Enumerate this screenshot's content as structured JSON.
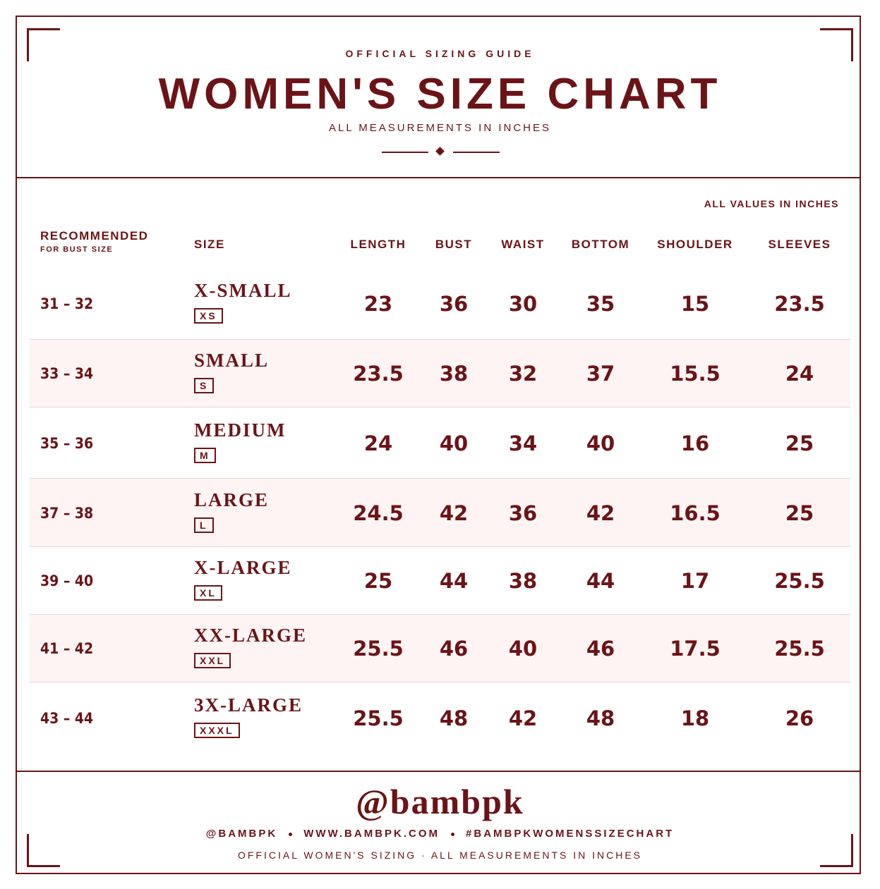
{
  "header": {
    "eyebrow": "OFFICIAL SIZING GUIDE",
    "title": "WOMEN'S SIZE CHART",
    "subtitle": "ALL MEASUREMENTS IN INCHES"
  },
  "table": {
    "note": "ALL VALUES IN INCHES",
    "columns": {
      "recommended": "RECOMMENDED",
      "recommended_sub": "FOR BUST SIZE",
      "size": "SIZE",
      "measures": [
        "LENGTH",
        "BUST",
        "WAIST",
        "BOTTOM",
        "SHOULDER",
        "SLEEVES"
      ]
    },
    "rows": [
      {
        "bust": "31 – 32",
        "size": "X-SMALL",
        "code": "XS",
        "values": [
          23,
          36,
          30,
          35,
          15,
          23.5
        ]
      },
      {
        "bust": "33 – 34",
        "size": "SMALL",
        "code": "S",
        "values": [
          23.5,
          38,
          32,
          37,
          15.5,
          24
        ]
      },
      {
        "bust": "35 – 36",
        "size": "MEDIUM",
        "code": "M",
        "values": [
          24,
          40,
          34,
          40,
          16,
          25
        ]
      },
      {
        "bust": "37 – 38",
        "size": "LARGE",
        "code": "L",
        "values": [
          24.5,
          42,
          36,
          42,
          16.5,
          25
        ]
      },
      {
        "bust": "39 – 40",
        "size": "X-LARGE",
        "code": "XL",
        "values": [
          25,
          44,
          38,
          44,
          17,
          25.5
        ]
      },
      {
        "bust": "41 – 42",
        "size": "XX-LARGE",
        "code": "XXL",
        "values": [
          25.5,
          46,
          40,
          46,
          17.5,
          25.5
        ]
      },
      {
        "bust": "43 – 44",
        "size": "3X-LARGE",
        "code": "XXXL",
        "values": [
          25.5,
          48,
          42,
          48,
          18,
          26
        ]
      }
    ]
  },
  "footer": {
    "handle": "@bambpk",
    "links": [
      "@BAMBPK",
      "WWW.BAMBPK.COM",
      "#BAMBPKWOMENSSIZECHART"
    ],
    "note": "OFFICIAL WOMEN'S SIZING · ALL MEASUREMENTS IN INCHES"
  }
}
